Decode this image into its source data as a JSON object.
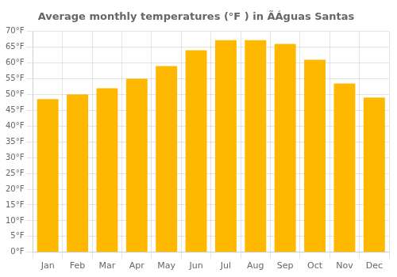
{
  "chart_data": {
    "type": "bar",
    "title": "Average monthly temperatures (°F ) in ÃÁguas Santas",
    "categories": [
      "Jan",
      "Feb",
      "Mar",
      "Apr",
      "May",
      "Jun",
      "Jul",
      "Aug",
      "Sep",
      "Oct",
      "Nov",
      "Dec"
    ],
    "values": [
      48.5,
      50.0,
      52.0,
      55.0,
      59.0,
      64.0,
      67.2,
      67.2,
      66.0,
      61.0,
      53.5,
      49.0
    ],
    "color": "#FFB800",
    "ylim": [
      0,
      70
    ],
    "yticks": [
      {
        "value": 0,
        "label": "0°F"
      },
      {
        "value": 5,
        "label": "5°F"
      },
      {
        "value": 10,
        "label": "10°F"
      },
      {
        "value": 15,
        "label": "15°F"
      },
      {
        "value": 20,
        "label": "20°F"
      },
      {
        "value": 25,
        "label": "25°F"
      },
      {
        "value": 30,
        "label": "30°F"
      },
      {
        "value": 35,
        "label": "35°F"
      },
      {
        "value": 40,
        "label": "40°F"
      },
      {
        "value": 45,
        "label": "45°F"
      },
      {
        "value": 50,
        "label": "50°F"
      },
      {
        "value": 55,
        "label": "55°F"
      },
      {
        "value": 60,
        "label": "60°F"
      },
      {
        "value": 65,
        "label": "65°F"
      },
      {
        "value": 70,
        "label": "70°F"
      }
    ],
    "grid": true
  }
}
